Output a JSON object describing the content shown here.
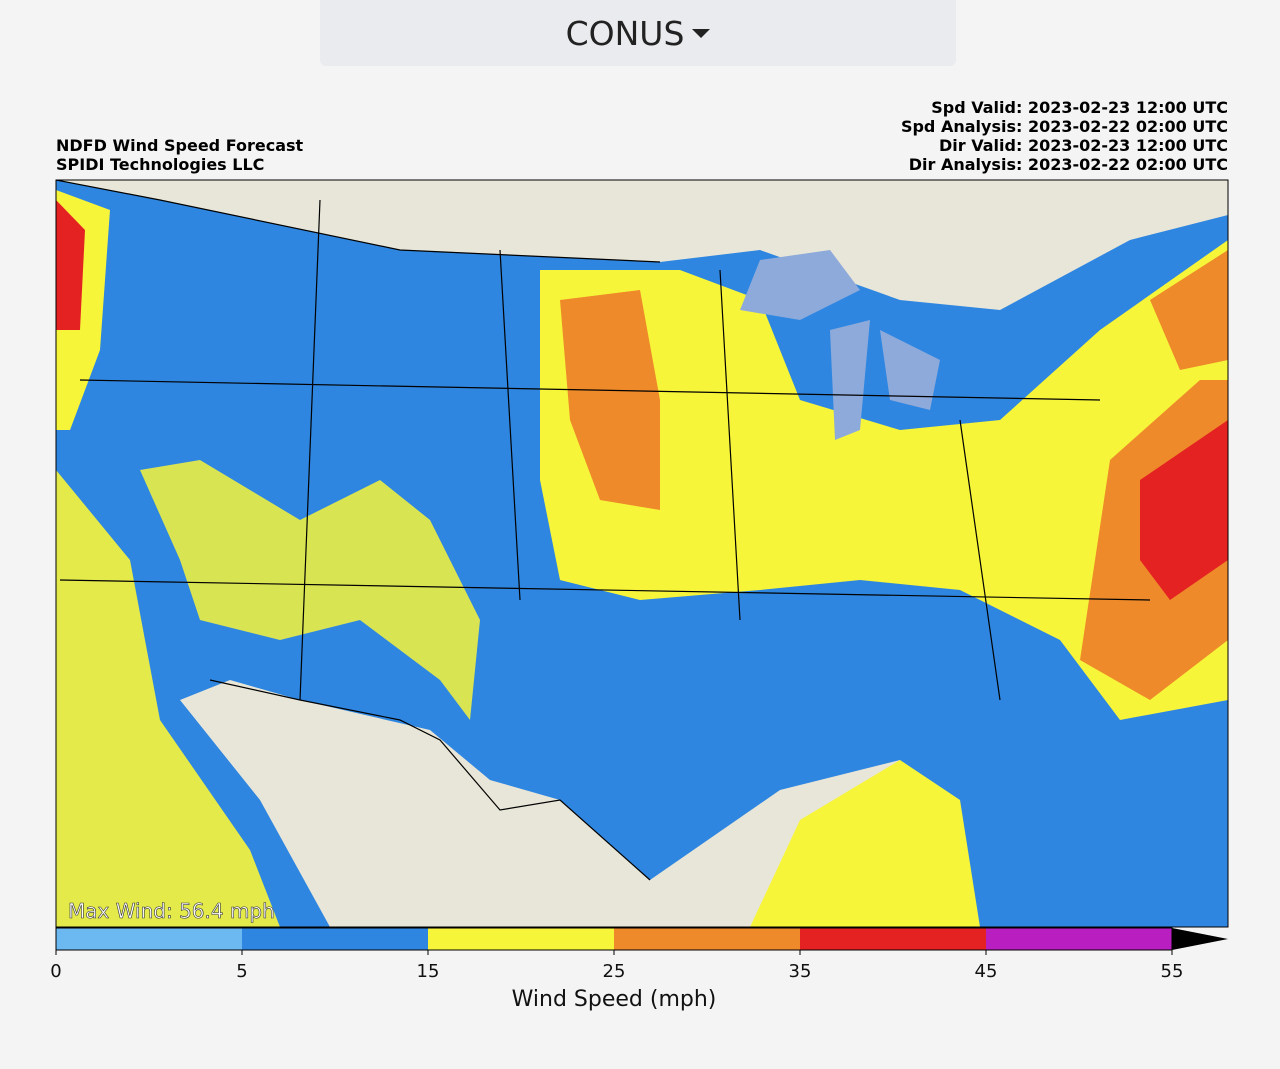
{
  "dropdown": {
    "label": "CONUS"
  },
  "header": {
    "title": "NDFD Wind Speed Forecast",
    "source": "SPIDI Technologies LLC",
    "valid_lines": [
      "Spd Valid: 2023-02-23 12:00 UTC",
      "Spd Analysis: 2023-02-22 02:00 UTC",
      "Dir Valid: 2023-02-23 12:00 UTC",
      "Dir Analysis: 2023-02-22 02:00 UTC"
    ]
  },
  "map": {
    "annotation": "Max Wind: 56.4 mph"
  },
  "colorbar": {
    "label": "Wind Speed (mph)",
    "boundaries": [
      0,
      5,
      15,
      25,
      35,
      45,
      55
    ],
    "colors": [
      "#6cb8f0",
      "#2f86e0",
      "#f7f53a",
      "#ee8a2a",
      "#e42222",
      "#b81ec0"
    ],
    "extend_color": "#000000"
  }
}
